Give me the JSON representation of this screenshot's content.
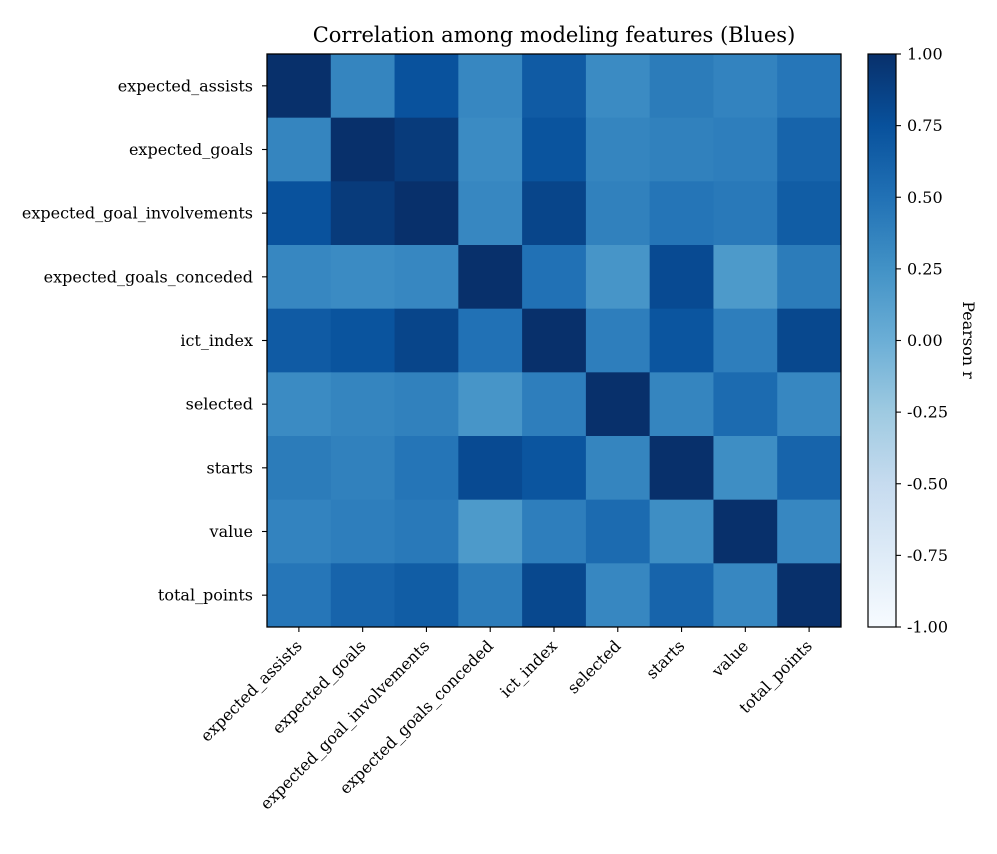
{
  "chart_data": {
    "type": "heatmap",
    "title": "Correlation among modeling features (Blues)",
    "row_labels": [
      "expected_assists",
      "expected_goals",
      "expected_goal_involvements",
      "expected_goals_conceded",
      "ict_index",
      "selected",
      "starts",
      "value",
      "total_points"
    ],
    "col_labels": [
      "expected_assists",
      "expected_goals",
      "expected_goal_involvements",
      "expected_goals_conceded",
      "ict_index",
      "selected",
      "starts",
      "value",
      "total_points"
    ],
    "values": [
      [
        1.0,
        0.35,
        0.74,
        0.33,
        0.67,
        0.3,
        0.42,
        0.36,
        0.46
      ],
      [
        0.35,
        1.0,
        0.92,
        0.3,
        0.73,
        0.35,
        0.38,
        0.4,
        0.6
      ],
      [
        0.74,
        0.92,
        1.0,
        0.33,
        0.84,
        0.38,
        0.47,
        0.44,
        0.66
      ],
      [
        0.33,
        0.3,
        0.33,
        1.0,
        0.5,
        0.22,
        0.8,
        0.18,
        0.42
      ],
      [
        0.67,
        0.73,
        0.84,
        0.5,
        1.0,
        0.4,
        0.72,
        0.4,
        0.82
      ],
      [
        0.3,
        0.35,
        0.38,
        0.22,
        0.4,
        1.0,
        0.35,
        0.55,
        0.33
      ],
      [
        0.42,
        0.38,
        0.47,
        0.8,
        0.72,
        0.35,
        1.0,
        0.28,
        0.6
      ],
      [
        0.36,
        0.4,
        0.44,
        0.18,
        0.4,
        0.55,
        0.28,
        1.0,
        0.33
      ],
      [
        0.46,
        0.6,
        0.66,
        0.42,
        0.82,
        0.33,
        0.6,
        0.33,
        1.0
      ]
    ],
    "colormap": "Blues",
    "vmin": -1.0,
    "vmax": 1.0,
    "colorbar": {
      "label": "Pearson r",
      "ticks": [
        1.0,
        0.75,
        0.5,
        0.25,
        0.0,
        -0.25,
        -0.5,
        -0.75,
        -1.0
      ],
      "tick_labels": [
        "1.00",
        "0.75",
        "0.50",
        "0.25",
        "0.00",
        "-0.25",
        "-0.50",
        "-0.75",
        "-1.00"
      ]
    }
  },
  "colors": {
    "axis": "#000000",
    "background": "#ffffff"
  }
}
